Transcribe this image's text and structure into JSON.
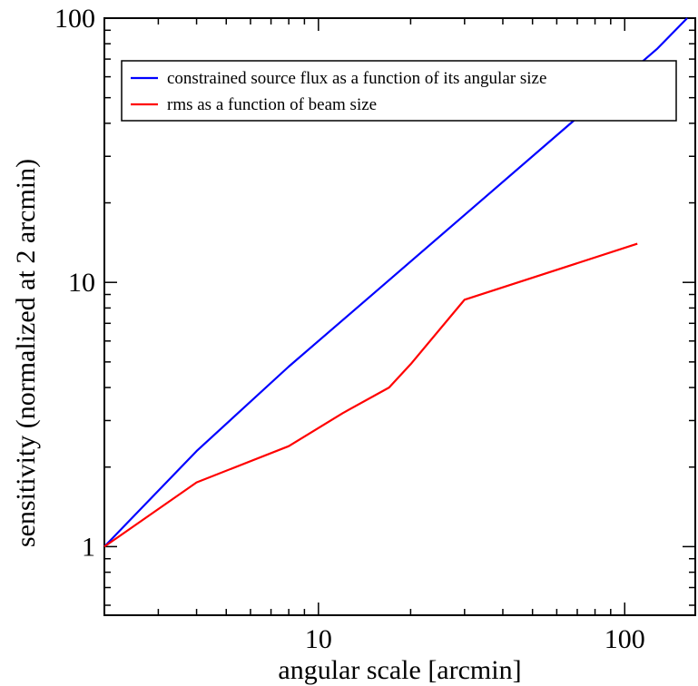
{
  "chart_data": {
    "type": "line",
    "xlabel": "angular scale [arcmin]",
    "ylabel": "sensitivity (normalized at 2 arcmin)",
    "xscale": "log",
    "yscale": "log",
    "xlim": [
      2,
      170
    ],
    "ylim": [
      0.55,
      100
    ],
    "xticks": [
      {
        "value": 10,
        "label": "10"
      },
      {
        "value": 100,
        "label": "100"
      }
    ],
    "yticks": [
      {
        "value": 1,
        "label": "1"
      },
      {
        "value": 10,
        "label": "10"
      },
      {
        "value": 100,
        "label": "100"
      }
    ],
    "grid": false,
    "legend_position": "top-right",
    "series": [
      {
        "name": "constrained source flux as a function of its angular size",
        "color": "#0000ff",
        "x": [
          2,
          4,
          8,
          16,
          32,
          64,
          128,
          160
        ],
        "y": [
          1,
          2.3,
          4.8,
          9.6,
          19.2,
          38.4,
          76.8,
          100
        ]
      },
      {
        "name": "rms as a function of beam size",
        "color": "#ff0000",
        "x": [
          2,
          4,
          8,
          12,
          17,
          20,
          30,
          110
        ],
        "y": [
          1,
          1.75,
          2.4,
          3.2,
          4.0,
          4.9,
          8.6,
          14
        ]
      }
    ]
  }
}
